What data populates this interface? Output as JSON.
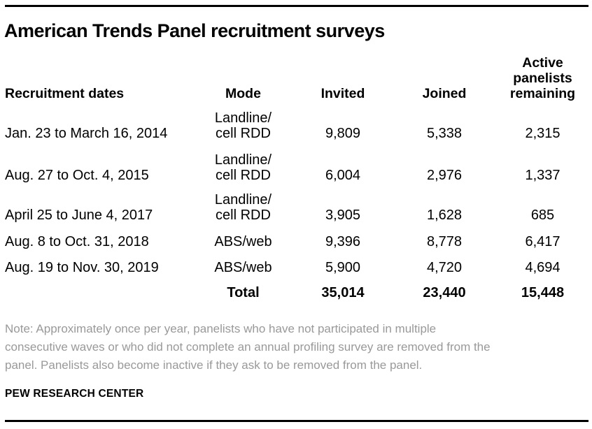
{
  "title": "American Trends Panel recruitment surveys",
  "table": {
    "headers": {
      "dates": "Recruitment dates",
      "mode": "Mode",
      "invited": "Invited",
      "joined": "Joined",
      "remaining": "Active\npanelists\nremaining"
    },
    "rows": [
      {
        "dates": "Jan. 23 to March 16, 2014",
        "mode": "Landline/\ncell RDD",
        "invited": "9,809",
        "joined": "5,338",
        "remaining": "2,315"
      },
      {
        "dates": "Aug. 27 to Oct. 4, 2015",
        "mode": "Landline/\ncell RDD",
        "invited": "6,004",
        "joined": "2,976",
        "remaining": "1,337"
      },
      {
        "dates": "April 25 to June 4, 2017",
        "mode": "Landline/\ncell RDD",
        "invited": "3,905",
        "joined": "1,628",
        "remaining": "685"
      },
      {
        "dates": "Aug. 8 to Oct. 31, 2018",
        "mode": "ABS/web",
        "invited": "9,396",
        "joined": "8,778",
        "remaining": "6,417"
      },
      {
        "dates": "Aug. 19 to Nov. 30, 2019",
        "mode": "ABS/web",
        "invited": "5,900",
        "joined": "4,720",
        "remaining": "4,694"
      }
    ],
    "total": {
      "label": "Total",
      "invited": "35,014",
      "joined": "23,440",
      "remaining": "15,448"
    }
  },
  "note": "Note: Approximately once per year, panelists who have not participated in multiple\nconsecutive waves or who did not complete an annual profiling survey are removed from the\npanel. Panelists also become inactive if they ask to be removed from the panel.",
  "source": "PEW RESEARCH CENTER",
  "colors": {
    "text": "#000000",
    "note_text": "#999999",
    "rule": "#000000",
    "background": "#ffffff"
  },
  "chart_data": {
    "type": "table",
    "title": "American Trends Panel recruitment surveys",
    "columns": [
      "Recruitment dates",
      "Mode",
      "Invited",
      "Joined",
      "Active panelists remaining"
    ],
    "rows": [
      [
        "Jan. 23 to March 16, 2014",
        "Landline/cell RDD",
        9809,
        5338,
        2315
      ],
      [
        "Aug. 27 to Oct. 4, 2015",
        "Landline/cell RDD",
        6004,
        2976,
        1337
      ],
      [
        "April 25 to June 4, 2017",
        "Landline/cell RDD",
        3905,
        1628,
        685
      ],
      [
        "Aug. 8 to Oct. 31, 2018",
        "ABS/web",
        9396,
        8778,
        6417
      ],
      [
        "Aug. 19 to Nov. 30, 2019",
        "ABS/web",
        5900,
        4720,
        4694
      ]
    ],
    "total_row": [
      "",
      "Total",
      35014,
      23440,
      15448
    ],
    "note": "Approximately once per year, panelists who have not participated in multiple consecutive waves or who did not complete an annual profiling survey are removed from the panel. Panelists also become inactive if they ask to be removed from the panel.",
    "source": "PEW RESEARCH CENTER"
  }
}
